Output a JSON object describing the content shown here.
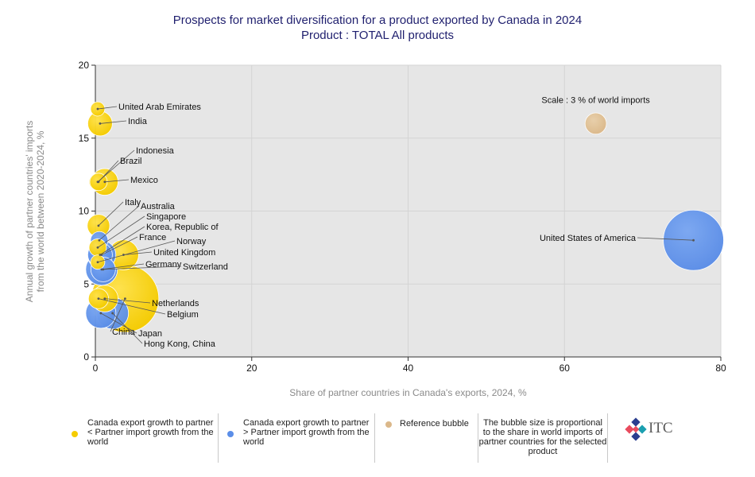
{
  "header": {
    "title_line1": "Prospects for market diversification for a product exported by Canada in 2024",
    "title_line2": "Product : TOTAL All products"
  },
  "chart_data": {
    "type": "scatter",
    "title": "Prospects for market diversification for a product exported by Canada in 2024",
    "subtitle": "Product : TOTAL All products",
    "xlabel": "Share of partner countries in Canada's exports, 2024, %",
    "ylabel_line1": "Annual growth of partner countries' imports",
    "ylabel_line2": "from the world between 2020-2024, %",
    "xlim": [
      0,
      80
    ],
    "ylim": [
      0,
      20
    ],
    "xticks": [
      0,
      20,
      40,
      60,
      80
    ],
    "yticks": [
      0,
      5,
      10,
      15,
      20
    ],
    "grid": true,
    "colors": {
      "lower": "#f5cc00",
      "higher": "#5b8ee8",
      "reference": "#dbb88a"
    },
    "points": [
      {
        "label": "United Arab Emirates",
        "x": 0.3,
        "y": 17,
        "size": 0.2,
        "group": "lower"
      },
      {
        "label": "India",
        "x": 0.6,
        "y": 16,
        "size": 0.6,
        "group": "lower"
      },
      {
        "label": "Indonesia",
        "x": 0.3,
        "y": 12,
        "size": 0.3,
        "group": "lower"
      },
      {
        "label": "Brazil",
        "x": 0.4,
        "y": 12,
        "size": 0.3,
        "group": "lower"
      },
      {
        "label": "Mexico",
        "x": 1.2,
        "y": 12,
        "size": 0.7,
        "group": "lower"
      },
      {
        "label": "Italy",
        "x": 0.4,
        "y": 9,
        "size": 0.5,
        "group": "lower"
      },
      {
        "label": "Australia",
        "x": 0.5,
        "y": 8,
        "size": 0.3,
        "group": "higher"
      },
      {
        "label": "Singapore",
        "x": 0.3,
        "y": 7.5,
        "size": 0.3,
        "group": "lower"
      },
      {
        "label": "Korea, Republic of",
        "x": 0.6,
        "y": 7,
        "size": 0.6,
        "group": "higher"
      },
      {
        "label": "France",
        "x": 0.8,
        "y": 7,
        "size": 0.8,
        "group": "higher"
      },
      {
        "label": "Norway",
        "x": 0.3,
        "y": 6.5,
        "size": 0.2,
        "group": "lower"
      },
      {
        "label": "United Kingdom",
        "x": 3.6,
        "y": 7,
        "size": 0.9,
        "group": "lower"
      },
      {
        "label": "Germany",
        "x": 0.8,
        "y": 6,
        "size": 1.0,
        "group": "higher"
      },
      {
        "label": "Switzerland",
        "x": 1.0,
        "y": 6,
        "size": 0.6,
        "group": "higher"
      },
      {
        "label": "Netherlands",
        "x": 1.2,
        "y": 4,
        "size": 0.7,
        "group": "lower"
      },
      {
        "label": "Belgium",
        "x": 0.4,
        "y": 4,
        "size": 0.4,
        "group": "lower"
      },
      {
        "label": "China",
        "x": 3.8,
        "y": 4,
        "size": 4.5,
        "group": "lower"
      },
      {
        "label": "Japan",
        "x": 0.7,
        "y": 3,
        "size": 0.9,
        "group": "higher"
      },
      {
        "label": "Hong Kong, China",
        "x": 2.2,
        "y": 3,
        "size": 1.0,
        "group": "higher"
      },
      {
        "label": "United States of America",
        "x": 76.5,
        "y": 8,
        "size": 3.6,
        "group": "higher"
      },
      {
        "label": "Scale : 3 % of world imports",
        "x": 64,
        "y": 16,
        "size": 0.45,
        "group": "reference"
      }
    ]
  },
  "legend": {
    "items": [
      {
        "text": "Canada export growth to partner < Partner import growth from the world",
        "color": "#f5cc00"
      },
      {
        "text": "Canada export growth to partner > Partner import growth from the world",
        "color": "#5b8ee8"
      },
      {
        "text": "Reference bubble",
        "color": "#dbb88a"
      },
      {
        "text": "The bubble size is proportional to the share in world imports of partner countries for the selected product",
        "color": ""
      }
    ],
    "logo_text": "ITC"
  }
}
